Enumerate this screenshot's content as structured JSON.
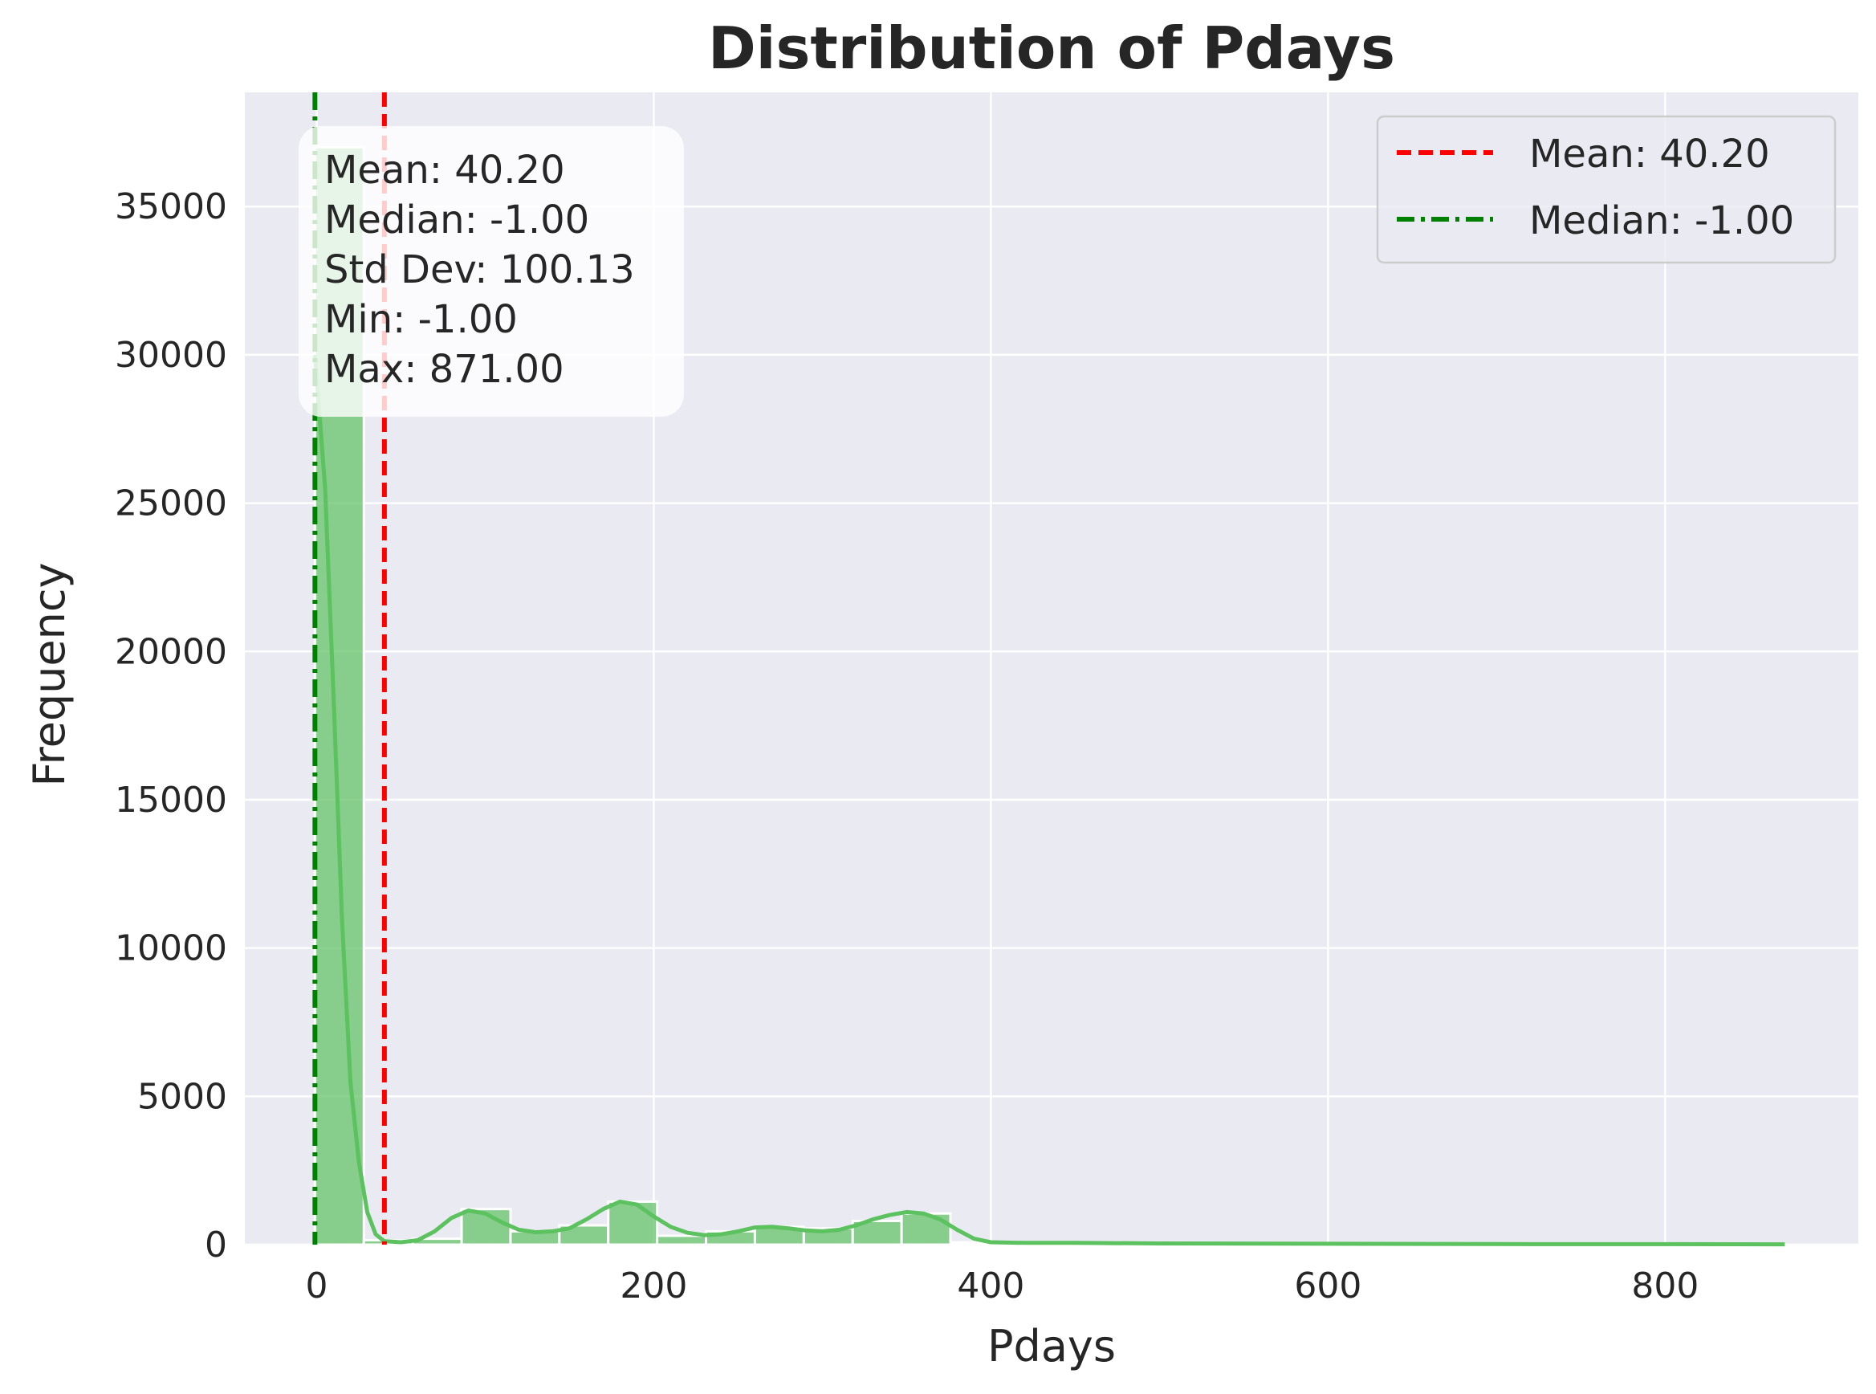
{
  "chart_data": {
    "type": "bar",
    "title": "Distribution of Pdays",
    "xlabel": "Pdays",
    "ylabel": "Frequency",
    "xlim": [
      -42.6,
      914.6
    ],
    "ylim": [
      0,
      38850
    ],
    "xticks": [
      0,
      200,
      400,
      600,
      800
    ],
    "xtick_labels": [
      "0",
      "200",
      "400",
      "600",
      "800"
    ],
    "yticks": [
      0,
      5000,
      10000,
      15000,
      20000,
      25000,
      30000,
      35000
    ],
    "ytick_labels": [
      "0",
      "5000",
      "10000",
      "15000",
      "20000",
      "25000",
      "30000",
      "35000"
    ],
    "grid": true,
    "background": "#eaeaf2",
    "bar_color": "#5cc15f",
    "kde_color": "#5cc15f",
    "bins": [
      {
        "x0": -1,
        "x1": 28,
        "count": 37000
      },
      {
        "x0": 28,
        "x1": 57,
        "count": 150
      },
      {
        "x0": 57,
        "x1": 86,
        "count": 200
      },
      {
        "x0": 86,
        "x1": 115,
        "count": 1200
      },
      {
        "x0": 115,
        "x1": 144,
        "count": 450
      },
      {
        "x0": 144,
        "x1": 173,
        "count": 650
      },
      {
        "x0": 173,
        "x1": 202,
        "count": 1450
      },
      {
        "x0": 202,
        "x1": 231,
        "count": 300
      },
      {
        "x0": 231,
        "x1": 260,
        "count": 450
      },
      {
        "x0": 260,
        "x1": 289,
        "count": 600
      },
      {
        "x0": 289,
        "x1": 318,
        "count": 550
      },
      {
        "x0": 318,
        "x1": 347,
        "count": 800
      },
      {
        "x0": 347,
        "x1": 376,
        "count": 1050
      },
      {
        "x0": 376,
        "x1": 405,
        "count": 80
      },
      {
        "x0": 405,
        "x1": 434,
        "count": 40
      },
      {
        "x0": 434,
        "x1": 463,
        "count": 30
      },
      {
        "x0": 463,
        "x1": 492,
        "count": 20
      },
      {
        "x0": 492,
        "x1": 521,
        "count": 15
      },
      {
        "x0": 521,
        "x1": 550,
        "count": 12
      },
      {
        "x0": 550,
        "x1": 579,
        "count": 10
      },
      {
        "x0": 579,
        "x1": 608,
        "count": 8
      },
      {
        "x0": 608,
        "x1": 637,
        "count": 6
      },
      {
        "x0": 637,
        "x1": 666,
        "count": 5
      },
      {
        "x0": 666,
        "x1": 695,
        "count": 4
      },
      {
        "x0": 695,
        "x1": 724,
        "count": 4
      },
      {
        "x0": 724,
        "x1": 753,
        "count": 3
      },
      {
        "x0": 753,
        "x1": 782,
        "count": 3
      },
      {
        "x0": 782,
        "x1": 811,
        "count": 2
      },
      {
        "x0": 811,
        "x1": 840,
        "count": 2
      },
      {
        "x0": 840,
        "x1": 871,
        "count": 2
      }
    ],
    "kde": {
      "x": [
        -1,
        5,
        10,
        15,
        20,
        25,
        30,
        35,
        40,
        50,
        60,
        70,
        80,
        90,
        100,
        110,
        120,
        130,
        140,
        150,
        160,
        170,
        180,
        190,
        200,
        210,
        220,
        230,
        240,
        250,
        260,
        270,
        280,
        290,
        300,
        310,
        320,
        330,
        340,
        350,
        360,
        370,
        380,
        390,
        400,
        420,
        450,
        500,
        600,
        700,
        800,
        871
      ],
      "y": [
        30000,
        25500,
        18500,
        11000,
        5500,
        2800,
        1100,
        350,
        120,
        80,
        150,
        450,
        900,
        1150,
        1050,
        750,
        500,
        420,
        450,
        550,
        850,
        1200,
        1450,
        1350,
        950,
        600,
        400,
        320,
        350,
        450,
        580,
        600,
        550,
        480,
        450,
        500,
        650,
        850,
        1000,
        1100,
        1050,
        850,
        500,
        200,
        80,
        60,
        60,
        40,
        30,
        20,
        15,
        10
      ]
    },
    "reference_lines": [
      {
        "name": "Mean: 40.20",
        "x": 40.2,
        "color": "#ff0000",
        "style": "dashed"
      },
      {
        "name": "Median: -1.00",
        "x": -1.0,
        "color": "#008000",
        "style": "dashdot"
      }
    ],
    "legend_placement": "top-right",
    "stats_box": [
      "Mean: 40.20",
      "Median: -1.00",
      "Std Dev: 100.13",
      "Min: -1.00",
      "Max: 871.00"
    ]
  }
}
